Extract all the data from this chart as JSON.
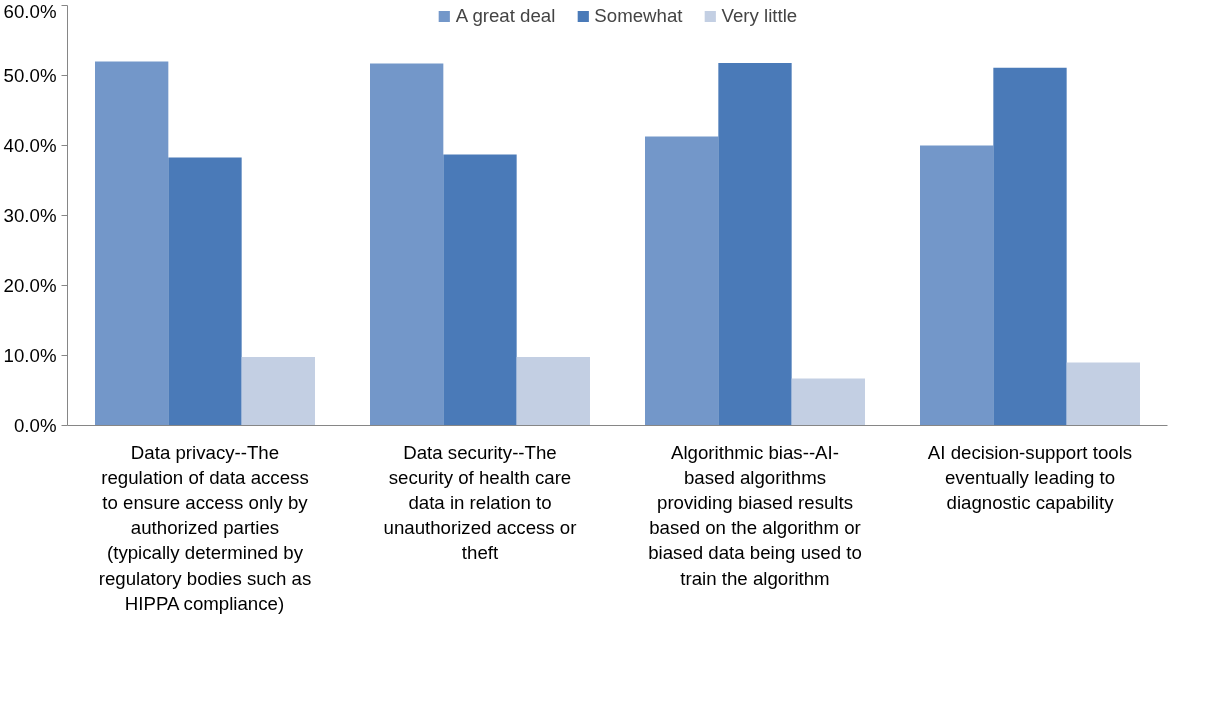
{
  "chart_data": {
    "type": "bar",
    "categories": [
      "Data privacy--The regulation of data access to ensure access only by authorized parties (typically determined by regulatory bodies such as HIPPA compliance)",
      "Data security--The security of health care data in relation to unauthorized access or theft",
      "Algorithmic bias--AI-based algorithms providing biased results based on the algorithm or biased data being used to train the algorithm",
      "AI decision-support tools eventually leading to diagnostic capability"
    ],
    "series": [
      {
        "name": "A great deal",
        "color": "#7397c9",
        "values": [
          52.0,
          51.7,
          41.3,
          40.0
        ]
      },
      {
        "name": "Somewhat",
        "color": "#4a7ab8",
        "values": [
          38.3,
          38.7,
          51.8,
          51.1
        ]
      },
      {
        "name": "Very little",
        "color": "#c3cfe3",
        "values": [
          9.8,
          9.8,
          6.7,
          9.0
        ]
      }
    ],
    "ylim": [
      0,
      60
    ],
    "yticks": [
      {
        "value": 0,
        "label": "0.0%"
      },
      {
        "value": 10,
        "label": "10.0%"
      },
      {
        "value": 20,
        "label": "20.0%"
      },
      {
        "value": 30,
        "label": "30.0%"
      },
      {
        "value": 40,
        "label": "40.0%"
      },
      {
        "value": 50,
        "label": "50.0%"
      },
      {
        "value": 60,
        "label": "60.0%"
      }
    ],
    "grid": false,
    "legend": "top"
  }
}
